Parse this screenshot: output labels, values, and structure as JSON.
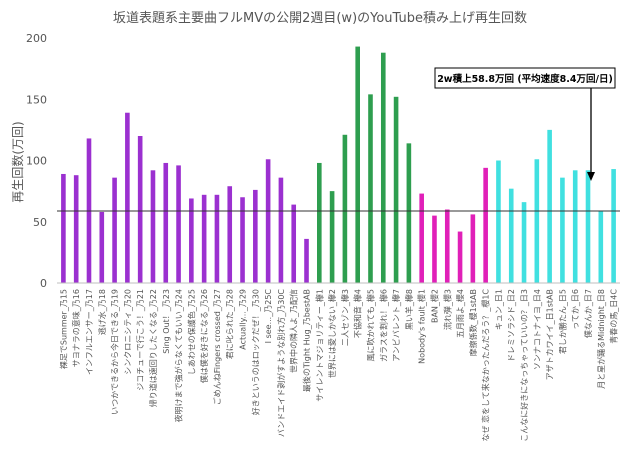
{
  "chart_data": {
    "type": "bar",
    "title": "坂道表題系主要曲フルMVの公開2週目(w)のYouTube積み上げ再生回数",
    "xlabel": "",
    "ylabel": "再生回数(万回)",
    "ylim": [
      0,
      200
    ],
    "yticks": [
      0,
      50,
      100,
      150,
      200
    ],
    "grid": false,
    "reference_line": 58.8,
    "annotation": "2w積上58.8万回 (平均速度8.4万回/日)",
    "colors": {
      "nogizaka": "#9b30d0",
      "keyakizaka": "#2e9e4f",
      "sakurazaka": "#e020b8",
      "hinatazaka": "#40e0e0",
      "refline": "#333333"
    },
    "categories": [
      "裸足でSummer_乃15",
      "サヨナラの意味_乃16",
      "インフルエンサー_乃17",
      "逃げ水_乃18",
      "いつかできるから今日できる_乃19",
      "シンクロニシティ_乃20",
      "ジコチューで行こう！_乃21",
      "帰り道は遠回りしたくなる_乃22",
      "Sing Out！_乃23",
      "夜明けまで強がらなくてもいい_乃24",
      "しあわせの保護色_乃25",
      "僕は僕を好きになる_乃26",
      "ごめんねFingers crossed_乃27",
      "君に叱られた_乃28",
      "Actually..._乃29",
      "好きというのはロックだぜ！_乃30",
      "I see..._乃25C",
      "バンドエイド剥がすような別れ方_乃30C",
      "世界中の隣人よ_乃配信",
      "最後のTight Hug_乃bestAB",
      "サイレントマジョリティー_欅1",
      "世界には愛しかない_欅2",
      "二人セゾン_欅3",
      "不協和音_欅4",
      "風に吹かれても_欅5",
      "ガラスを割れ！_欅6",
      "アンビバレント_欅7",
      "黒い羊_欅8",
      "Nobody's fault_櫻1",
      "BAN_櫻2",
      "流れ弾_櫻3",
      "五月雨よ_櫻4",
      "摩擦係数_櫻1stAB",
      "なぜ 恋をして来なかったんだろう？_櫻1C",
      "キュン_日1",
      "ドレミソラシド_日2",
      "こんなに好きになっちゃっていいの？_日3",
      "ソンナコトナイヨ_日4",
      "アザトカワイイ_日1stAB",
      "君しか勝たん_日5",
      "ってか_日6",
      "僕なんか_日7",
      "月と星が踊るMidnight_日8",
      "青春の馬_日4C"
    ],
    "values": [
      89,
      88,
      118,
      58,
      86,
      139,
      120,
      92,
      98,
      96,
      69,
      72,
      72,
      79,
      70,
      76,
      101,
      86,
      64,
      36,
      98,
      75,
      121,
      193,
      154,
      188,
      152,
      114,
      73,
      55,
      60,
      42,
      56,
      94,
      100,
      77,
      66,
      101,
      125,
      86,
      92,
      92,
      59,
      93
    ],
    "groups": [
      "nogizaka",
      "nogizaka",
      "nogizaka",
      "nogizaka",
      "nogizaka",
      "nogizaka",
      "nogizaka",
      "nogizaka",
      "nogizaka",
      "nogizaka",
      "nogizaka",
      "nogizaka",
      "nogizaka",
      "nogizaka",
      "nogizaka",
      "nogizaka",
      "nogizaka",
      "nogizaka",
      "nogizaka",
      "nogizaka",
      "keyakizaka",
      "keyakizaka",
      "keyakizaka",
      "keyakizaka",
      "keyakizaka",
      "keyakizaka",
      "keyakizaka",
      "keyakizaka",
      "sakurazaka",
      "sakurazaka",
      "sakurazaka",
      "sakurazaka",
      "sakurazaka",
      "sakurazaka",
      "hinatazaka",
      "hinatazaka",
      "hinatazaka",
      "hinatazaka",
      "hinatazaka",
      "hinatazaka",
      "hinatazaka",
      "hinatazaka",
      "hinatazaka",
      "hinatazaka"
    ]
  }
}
